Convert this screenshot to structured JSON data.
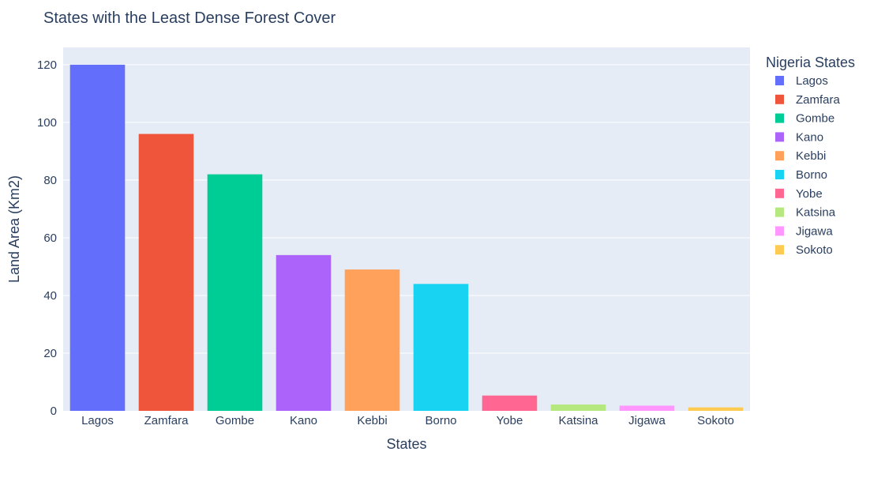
{
  "chart_data": {
    "type": "bar",
    "title": "States with the Least Dense Forest Cover",
    "xlabel": "States",
    "ylabel": "Land Area (Km2)",
    "ylim": [
      0,
      126
    ],
    "yticks": [
      0,
      20,
      40,
      60,
      80,
      100,
      120
    ],
    "grid": true,
    "legend": {
      "title": "Nigeria States",
      "placement": "right"
    },
    "categories": [
      "Lagos",
      "Zamfara",
      "Gombe",
      "Kano",
      "Kebbi",
      "Borno",
      "Yobe",
      "Katsina",
      "Jigawa",
      "Sokoto"
    ],
    "values": [
      120,
      96,
      82,
      54,
      49,
      44,
      5.3,
      2.2,
      1.8,
      1.2
    ],
    "colors": [
      "#636efa",
      "#ef553b",
      "#00cc96",
      "#ab63fa",
      "#ffa15a",
      "#19d3f3",
      "#ff6692",
      "#b6e880",
      "#ff97ff",
      "#fecb52"
    ],
    "plot_background": "#e5ecf6"
  }
}
